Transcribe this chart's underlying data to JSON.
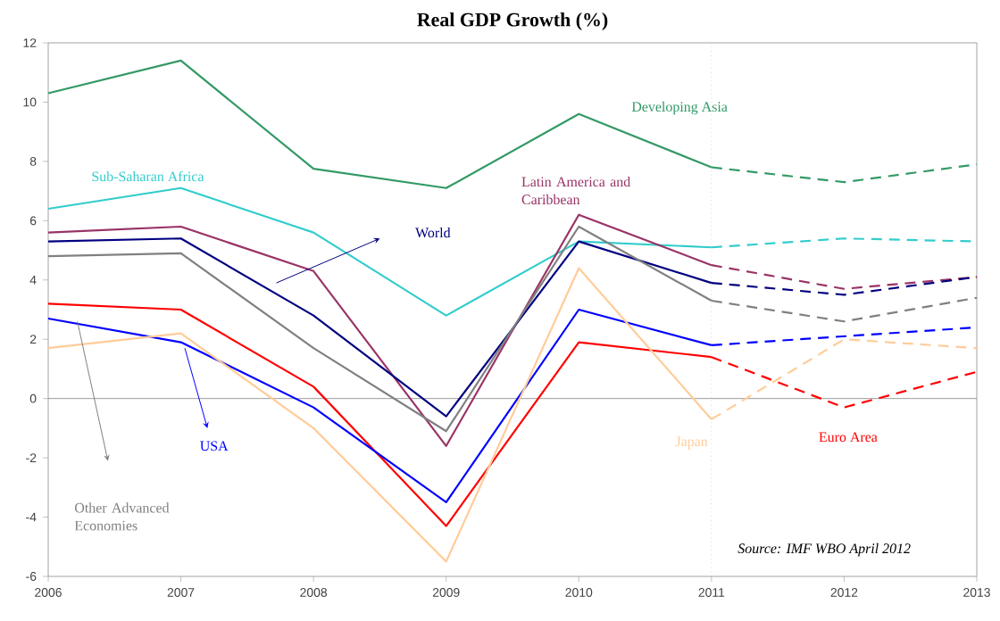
{
  "chart_data": {
    "type": "line",
    "title": "Real GDP Growth (%)",
    "x": [
      2006,
      2007,
      2008,
      2009,
      2010,
      2011
    ],
    "xlim": [
      2006,
      2013
    ],
    "xticks": [
      2006,
      2007,
      2008,
      2009,
      2010,
      2011,
      2012,
      2013
    ],
    "ylim": [
      -6,
      12
    ],
    "yticks": [
      -6,
      -4,
      -2,
      0,
      2,
      4,
      6,
      8,
      10,
      12
    ],
    "grid": false,
    "marker": "none",
    "series": [
      {
        "name": "Developing Asia",
        "color": "#339966",
        "line_style": "solid",
        "values": [
          10.3,
          11.4,
          7.75,
          7.1,
          9.6,
          7.8
        ]
      },
      {
        "color": "#339966",
        "line_style": "dashed",
        "x": [
          2011,
          2012,
          2013
        ],
        "values": [
          7.8,
          7.3,
          7.9
        ]
      },
      {
        "name": "Sub-Saharan Africa",
        "color": "#33cccc",
        "line_style": "solid",
        "values": [
          6.4,
          7.1,
          5.6,
          2.8,
          5.3,
          5.1
        ]
      },
      {
        "color": "#33cccc",
        "line_style": "dashed",
        "x": [
          2011,
          2012,
          2013
        ],
        "values": [
          5.1,
          5.4,
          5.3
        ]
      },
      {
        "name": "Latin America   and Caribbean",
        "color": "#993366",
        "line_style": "solid",
        "values": [
          5.6,
          5.8,
          4.3,
          -1.6,
          6.2,
          4.5
        ]
      },
      {
        "color": "#993366",
        "line_style": "dashed",
        "x": [
          2011,
          2012,
          2013
        ],
        "values": [
          4.5,
          3.7,
          4.1
        ]
      },
      {
        "name": "World",
        "color": "#000080",
        "line_style": "solid",
        "values": [
          5.3,
          5.4,
          2.8,
          -0.6,
          5.3,
          3.9
        ]
      },
      {
        "color": "#000080",
        "line_style": "dashed",
        "x": [
          2011,
          2012,
          2013
        ],
        "values": [
          3.9,
          3.5,
          4.1
        ]
      },
      {
        "name": "Other Advanced Economies",
        "color": "#808080",
        "line_style": "solid",
        "values": [
          4.8,
          4.9,
          1.7,
          -1.1,
          5.8,
          3.3
        ]
      },
      {
        "color": "#808080",
        "line_style": "dashed",
        "x": [
          2011,
          2012,
          2013
        ],
        "values": [
          3.3,
          2.6,
          3.4
        ]
      },
      {
        "name": "Euro Area",
        "color": "#ff0000",
        "line_style": "solid",
        "values": [
          3.2,
          3.0,
          0.4,
          -4.3,
          1.9,
          1.4
        ]
      },
      {
        "color": "#ff0000",
        "line_style": "dashed",
        "x": [
          2011,
          2012,
          2013
        ],
        "values": [
          1.4,
          -0.3,
          0.9
        ]
      },
      {
        "name": "USA",
        "color": "#0000ff",
        "line_style": "solid",
        "values": [
          2.7,
          1.9,
          -0.3,
          -3.5,
          3.0,
          1.8
        ]
      },
      {
        "color": "#0000ff",
        "line_style": "dashed",
        "x": [
          2011,
          2012,
          2013
        ],
        "values": [
          1.8,
          2.1,
          2.4
        ]
      },
      {
        "name": "Japan",
        "color": "#ffcc99",
        "line_style": "solid",
        "values": [
          1.7,
          2.2,
          -1.0,
          -5.5,
          4.4,
          -0.7
        ]
      },
      {
        "color": "#ffcc99",
        "line_style": "dashed",
        "x": [
          2011,
          2012,
          2013
        ],
        "values": [
          -0.7,
          2.0,
          1.7
        ]
      }
    ],
    "ref_lines": [
      {
        "axis": "y",
        "value": 0,
        "color": "#808080",
        "line_style": "solid"
      },
      {
        "axis": "x",
        "value": 2011,
        "color": "#c0c0c0",
        "line_style": "dotted"
      }
    ],
    "annotations": [
      "Source: IMF WBO April 2012"
    ]
  }
}
